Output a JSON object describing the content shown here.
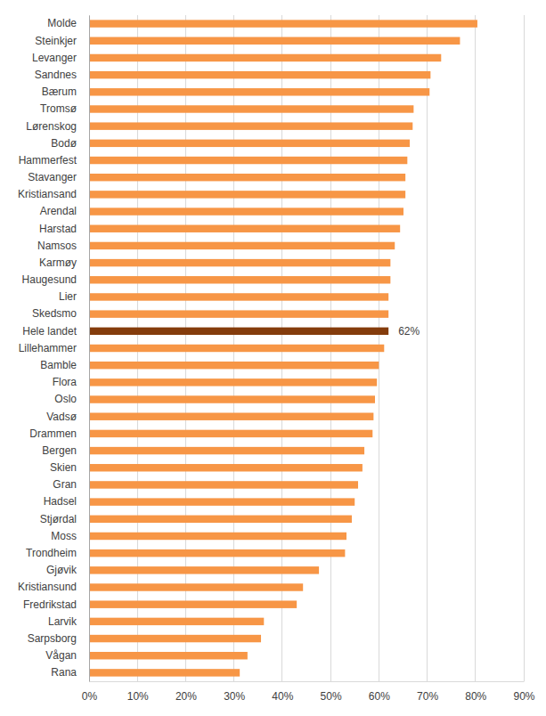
{
  "chart_data": {
    "type": "bar",
    "orientation": "horizontal",
    "categories": [
      "Molde",
      "Steinkjer",
      "Levanger",
      "Sandnes",
      "Bærum",
      "Tromsø",
      "Lørenskog",
      "Bodø",
      "Hammerfest",
      "Stavanger",
      "Kristiansand",
      "Arendal",
      "Harstad",
      "Namsos",
      "Karmøy",
      "Haugesund",
      "Lier",
      "Skedsmo",
      "Hele landet",
      "Lillehammer",
      "Bamble",
      "Flora",
      "Oslo",
      "Vadsø",
      "Drammen",
      "Bergen",
      "Skien",
      "Gran",
      "Hadsel",
      "Stjørdal",
      "Moss",
      "Trondheim",
      "Gjøvik",
      "Kristiansund",
      "Fredrikstad",
      "Larvik",
      "Sarpsborg",
      "Vågan",
      "Rana"
    ],
    "values": [
      80.4,
      76.8,
      72.9,
      70.7,
      70.5,
      67.2,
      67,
      66.4,
      65.9,
      65.5,
      65.5,
      65.1,
      64.4,
      63.3,
      62.4,
      62.4,
      62,
      62,
      62,
      61.1,
      60,
      59.6,
      59.2,
      58.9,
      58.7,
      57,
      56.6,
      55.7,
      55,
      54.4,
      53.3,
      53,
      47.6,
      44.3,
      43,
      36.2,
      35.6,
      32.8,
      31.2
    ],
    "colors": [
      "#F79646",
      "#F79646",
      "#F79646",
      "#F79646",
      "#F79646",
      "#F79646",
      "#F79646",
      "#F79646",
      "#F79646",
      "#F79646",
      "#F79646",
      "#F79646",
      "#F79646",
      "#F79646",
      "#F79646",
      "#F79646",
      "#F79646",
      "#F79646",
      "#843C0C",
      "#F79646",
      "#F79646",
      "#F79646",
      "#F79646",
      "#F79646",
      "#F79646",
      "#F79646",
      "#F79646",
      "#F79646",
      "#F79646",
      "#F79646",
      "#F79646",
      "#F79646",
      "#F79646",
      "#F79646",
      "#F79646",
      "#F79646",
      "#F79646",
      "#F79646",
      "#F79646"
    ],
    "data_labels": true,
    "value_labels": [
      null,
      null,
      null,
      null,
      null,
      null,
      null,
      null,
      null,
      null,
      null,
      null,
      null,
      null,
      null,
      null,
      null,
      null,
      "62%",
      null,
      null,
      null,
      null,
      null,
      null,
      null,
      null,
      null,
      null,
      null,
      null,
      null,
      null,
      null,
      null,
      null,
      null,
      null,
      null
    ],
    "xlim": [
      0,
      90
    ],
    "xticks": [
      {
        "value": 0,
        "label": "0%"
      },
      {
        "value": 10,
        "label": "10%"
      },
      {
        "value": 20,
        "label": "20%"
      },
      {
        "value": 30,
        "label": "30%"
      },
      {
        "value": 40,
        "label": "40%"
      },
      {
        "value": 50,
        "label": "50%"
      },
      {
        "value": 60,
        "label": "60%"
      },
      {
        "value": 70,
        "label": "70%"
      },
      {
        "value": 80,
        "label": "80%"
      },
      {
        "value": 90,
        "label": "90%"
      }
    ],
    "grid": true
  }
}
